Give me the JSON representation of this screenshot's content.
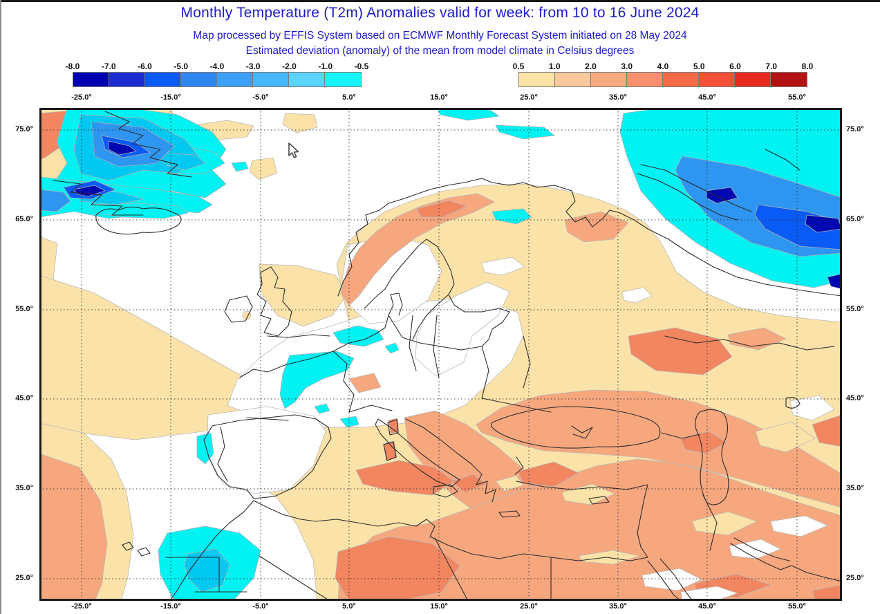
{
  "header": {
    "title": "Monthly Temperature (T2m) Anomalies valid for week: from 10 to 16 June 2024",
    "subtitle1": "Map processed by EFFIS System based on ECMWF Monthly Forecast System initiated on 28 May 2024",
    "subtitle2": "Estimated deviation (anomaly) of the mean from model climate in Celsius degrees",
    "title_color": "#1a1acb"
  },
  "legend": {
    "negative": {
      "ticks": [
        "-8.0",
        "-7.0",
        "-6.0",
        "-5.0",
        "-4.0",
        "-3.0",
        "-2.0",
        "-1.0",
        "-0.5"
      ],
      "colors": [
        "#0000B2",
        "#1C2CD2",
        "#0A5AF5",
        "#2E86F0",
        "#3CA0F8",
        "#46B6FA",
        "#5AD4FC",
        "#16F4FA"
      ]
    },
    "positive": {
      "ticks": [
        "0.5",
        "1.0",
        "2.0",
        "3.0",
        "4.0",
        "5.0",
        "6.0",
        "7.0",
        "8.0"
      ],
      "colors": [
        "#FBE3A8",
        "#F8C89C",
        "#F8AA80",
        "#F8906C",
        "#F76A46",
        "#F5503A",
        "#E62A20",
        "#B41212"
      ]
    }
  },
  "map": {
    "lon_labels": [
      "-25.0°",
      "-15.0°",
      "-5.0°",
      "5.0°",
      "15.0°",
      "25.0°",
      "35.0°",
      "45.0°",
      "55.0°"
    ],
    "lat_labels": [
      "75.0°",
      "65.0°",
      "55.0°",
      "45.0°",
      "35.0°",
      "25.0°"
    ],
    "fill_colors": {
      "anomaly_0_5_to_1": "#FBE2A8",
      "anomaly_1_to_2": "#F6A77E",
      "anomaly_2_to_3": "#F18660",
      "anomaly_neg_0_5_to_1": "#00F2F2",
      "anomaly_neg_1_to_2": "#00C8F0",
      "anomaly_neg_2_to_3": "#2E96F0",
      "anomaly_neg_4": "#0A5AF5",
      "anomaly_neg_6": "#1C2CD4",
      "anomaly_neg_8": "#0008B0"
    }
  }
}
